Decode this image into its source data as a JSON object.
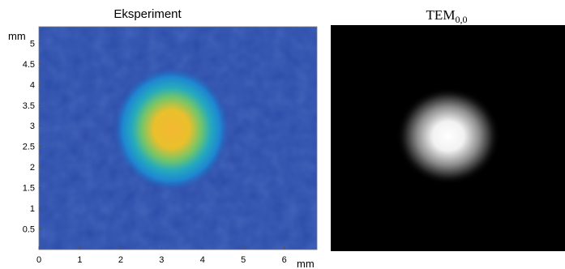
{
  "chart_data": [
    {
      "type": "heatmap",
      "title": "Eksperiment",
      "xlabel": "mm",
      "ylabel": "mm",
      "xlim": [
        0,
        6.8
      ],
      "ylim": [
        0,
        5.4
      ],
      "xticks": [
        "0",
        "1",
        "2",
        "3",
        "4",
        "5",
        "6"
      ],
      "yticks": [
        "0.5",
        "1",
        "1.5",
        "2",
        "2.5",
        "3",
        "3.5",
        "4",
        "4.5",
        "5"
      ],
      "xtick_values": [
        0,
        1,
        2,
        3,
        4,
        5,
        6
      ],
      "ytick_values": [
        0.5,
        1,
        1.5,
        2,
        2.5,
        3,
        3.5,
        4,
        4.5,
        5
      ],
      "colormap": "parula",
      "peak": {
        "x": 3.4,
        "y": 3.0
      },
      "beam_radius_mm": 1.3,
      "colors": {
        "background": "#2a4aa8",
        "halo": "#1f8fd0",
        "ring": "#3dbb9a",
        "core": "#f5b52e"
      }
    },
    {
      "type": "heatmap",
      "title": "TEM",
      "title_subscript": "0,0",
      "colormap": "gray",
      "peak_position": "center",
      "colors": {
        "background": "#000000",
        "core": "#ffffff"
      }
    }
  ]
}
